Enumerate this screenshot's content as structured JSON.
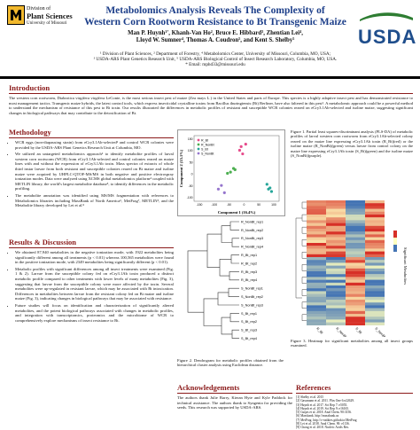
{
  "header": {
    "university": "University of Missouri",
    "division": "Division of",
    "unit": "Plant Sciences",
    "unit_sub": "University of Missouri",
    "usda": "USDA",
    "title_line1": "Metabolomics Analysis Reveals The Complexity of",
    "title_line2": "Western Corn Rootworm Resistance to Bt Transgenic Maize",
    "authors_line1": "Man P. Huynh¹′, Khanh-Van Ho², Bruce E. Hibbard³, Zhentian Lei⁴,",
    "authors_line2": "Lloyd W. Sumner⁴, Thomas A. Coudron⁵, and Kent S. Shelby⁵",
    "affil_line1": "¹ Division of Plant Sciences, ² Department of Forestry, ⁴ Metabolomics Center, University of Missouri, Columbia, MO, USA;",
    "affil_line2": "³ USDA-ARS Plant Genetics Research Unit, ⁵ USDA-ARS Biological Control of Insect Research Laboratory, Columbia, MO, USA.",
    "email": "* Email: mphd33@missouri.edu"
  },
  "intro": {
    "heading": "Introduction",
    "text": "The western corn rootworm, Diabrotica virgifera virgifera LeConte, is the most serious insect pest of maize (Zea mays L.) in the United States and parts of Europe. This species is a highly adaptive insect pest and has demonstrated resistance to most management tactics. Transgenic maize hybrids, the latest control tools, which express insecticidal crystalline toxins from Bacillus thuringiensis (Bt) Berliner, have also faltered in this pest¹. A metabolomic approach could be a powerful method to understand the mechanism of resistance of this pest to Bt toxin. Our results illustrated the differences in metabolic profiles of resistant and susceptible WCR colonies reared on eCry3.1Ab-selected and isoline maize, suggesting significant changes in biological pathways that may contribute to the detoxification of Bt."
  },
  "methods": {
    "heading": "Methodology",
    "items": [
      "WCR eggs (non-diapausing strain) from eCry3.1Ab-selected² and control WCR colonies were provided by the USDA-ARS Plant Genetics Research Unit at Columbia, MO.",
      "We utilized an untargeted metabolomics approach³ to identify metabolite profiles of larval western corn rootworm (WCR) from eCry3.1Ab-selected and control colonies reared on maize lines with and without the expression of eCry3.1Ab toxin. Mass spectra of extracts of whole third instar larvae from both resistant and susceptible colonies reared on Bt maize and isoline maize were acquired by UHPLC-QTOF-MS/MS in both negative and positive electrospray ionization modes. Data were analyzed using XCMS global metabolomics platform⁴ coupled with METLIN library, the world's largest metabolite database⁵, to identify differences in the metabolic profiling.",
      "The metabolite annotation was identified using MS/MS fragmentation with references to Metabolomics libraries including MassBank of North America⁶, MetFrag⁷, METLIN⁵, and the Metabolite library developed by Lei et al.⁸"
    ]
  },
  "results": {
    "heading": "Results & Discussion",
    "items": [
      "We obtained 87,940 metabolites in the negative ionization mode, with 1922 metabolites being significantly different among all treatments (p < 0.01) whereas 100,565 metabolites were found in the positive ionization mode, with 2349 metabolites being significantly different (p < 0.01).",
      "Metabolic profiles with significant differences among all insect treatments were examined (Fig. 1 & 2). Larvae from the susceptible colony fed on eCry3.1Ab toxin produced a distinct metabolic profile compared to other treatments with lower levels of many metabolites (Fig. 3), suggesting that larvae from the susceptible colony were more affected by the toxin. Several metabolites were up-regulated in resistant larvae, which may be associated with Bt intoxication. Differences in metabolites between larvae from the resistant colony fed on Bt maize and isoline maize (Fig. 3), indicating changes in biological pathways that may be associated with resistance.",
      "Future studies will focus on identification and characterization of significantly altered metabolites, and the potent biological pathways associated with changes in metabolic profiles, and integration with transcriptomics, proteomics and the microbiome of WCR to comprehensively explore mechanisms of insect resistance to Bt."
    ]
  },
  "pca": {
    "legend": [
      "R_Bt",
      "R_NonBt",
      "S_Bt",
      "S_NonBt"
    ],
    "xlabel": "Component 1 (16.4%)",
    "ylabel": "Component 2 (15.1%)",
    "x_ticks": [
      "-150",
      "-100",
      "-50",
      "0",
      "50",
      "100"
    ],
    "y_ticks": [
      "150",
      "100",
      "50",
      "0",
      "-50",
      "-100"
    ],
    "colors": [
      "#e64b8b",
      "#4caf50",
      "#26a69a",
      "#9575cd"
    ]
  },
  "chart_data": {
    "type": "scatter",
    "title": "",
    "xlabel": "Component 1 (16.4%)",
    "ylabel": "Component 2 (15.1%)",
    "xlim": [
      -160,
      120
    ],
    "ylim": [
      -110,
      160
    ],
    "series": [
      {
        "name": "R_Bt",
        "x": [
          -10,
          -5,
          10,
          0
        ],
        "y": [
          100,
          115,
          125,
          85
        ]
      },
      {
        "name": "R_NonBt",
        "x": [
          -40,
          -30,
          -25,
          -50
        ],
        "y": [
          10,
          25,
          20,
          5
        ]
      },
      {
        "name": "S_Bt",
        "x": [
          80,
          90,
          95,
          85
        ],
        "y": [
          -40,
          -55,
          -70,
          -60
        ]
      },
      {
        "name": "S_NonBt",
        "x": [
          -80,
          -70,
          -60
        ],
        "y": [
          -60,
          -45,
          -75
        ]
      }
    ]
  },
  "fig1": {
    "caption": "Figure 1. Partial least squares-discriminant analysis (PLS-DA) of metabolic profiles of larval western corn rootworm from eCry3.1Ab-selected colony reared on the maize line expressing eCry3.1Ab toxin (R_Bt)(red) or the isoline maize (R_NonBt)(green) versus larvae from control colony on the maize line expressing eCry3.1Ab toxin (S_Bt)(green) and the isoline maize (S_NonBt)(purple)."
  },
  "dendro": {
    "labels": [
      "R_NonBt_rep1",
      "R_NonBt_rep2",
      "R_NonBt_rep3",
      "R_NonBt_rep4",
      "R_Bt_rep1",
      "R_Bt_rep2",
      "R_Bt_rep3",
      "R_Bt_rep4",
      "S_NonBt_rep1",
      "S_NonBt_rep2",
      "S_NonBt_rep3",
      "S_Bt_rep1",
      "S_Bt_rep2",
      "S_Bt_rep3",
      "S_Bt_rep4"
    ]
  },
  "fig2": {
    "caption": "Figure 2. Dendrogram for metabolic profiles obtained from the hierarchical cluster analysis using Euclidean distance."
  },
  "heatmap": {
    "side_label": "Significant Metabolites",
    "col_labels": [
      "R_Bt",
      "R_NonBt",
      "S_Bt",
      "S_NonBt"
    ],
    "colors": [
      "#d73027",
      "#4575b4",
      "#ffffbf"
    ]
  },
  "fig3": {
    "caption": "Figure 3. Heatmap for significant metabolites among all insect groups examined."
  },
  "ack": {
    "heading": "Acknowledgements",
    "text": "The authors thank Julie Barry, Kieran Hyte and Kyle Paddock for technical assistance. The authors thank to Syngenta for providing the seeds. This research was supported by USDA-ARS."
  },
  "refs": {
    "heading": "References",
    "items": [
      "[1] Shelby et al. 2015",
      "[2] Gassmann et al. 2011. Plos One 6:e22629.",
      "[3] Huynh et al. 2017. Sci Rep 7: e5055.",
      "[4] Huynh et al. 2019. Sci Rep 9: e16165.",
      "[5] Guijas et al. 2018. Anal Chem. 90:3156.",
      "[6] Massbank. http://massbank.us",
      "[7] MetFrag. http://c-ruttkies.github.io/MetFrag",
      "[8] Lei et al. 2018. Anal Chem. 90: e1136.",
      "[9] Chong et al. 2018. Nucleic Acids Res."
    ]
  }
}
